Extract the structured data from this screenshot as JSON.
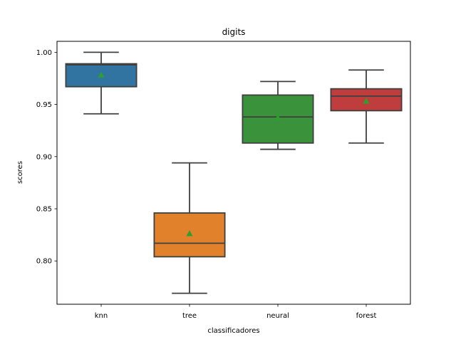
{
  "chart_data": {
    "type": "box",
    "title": "digits",
    "xlabel": "classificadores",
    "ylabel": "scores",
    "ylim": [
      0.7585,
      1.0105
    ],
    "yticks": [
      0.8,
      0.85,
      0.9,
      0.95,
      1.0
    ],
    "ytick_labels": [
      "0.80",
      "0.85",
      "0.90",
      "0.95",
      "1.00"
    ],
    "categories": [
      "knn",
      "tree",
      "neural",
      "forest"
    ],
    "series": [
      {
        "category": "knn",
        "color": "#3274a1",
        "whisker_low": 0.941,
        "q1": 0.967,
        "median": 0.988,
        "q3": 0.989,
        "whisker_high": 1.0,
        "mean": 0.978
      },
      {
        "category": "tree",
        "color": "#e1812c",
        "whisker_low": 0.769,
        "q1": 0.804,
        "median": 0.817,
        "q3": 0.846,
        "whisker_high": 0.894,
        "mean": 0.826
      },
      {
        "category": "neural",
        "color": "#3a923a",
        "whisker_low": 0.907,
        "q1": 0.913,
        "median": 0.938,
        "q3": 0.959,
        "whisker_high": 0.972,
        "mean": 0.937
      },
      {
        "category": "forest",
        "color": "#c03d3e",
        "whisker_low": 0.913,
        "q1": 0.944,
        "median": 0.958,
        "q3": 0.965,
        "whisker_high": 0.983,
        "mean": 0.953
      }
    ],
    "mean_marker_color": "#2ca02c",
    "grid": false,
    "legend": "none"
  }
}
